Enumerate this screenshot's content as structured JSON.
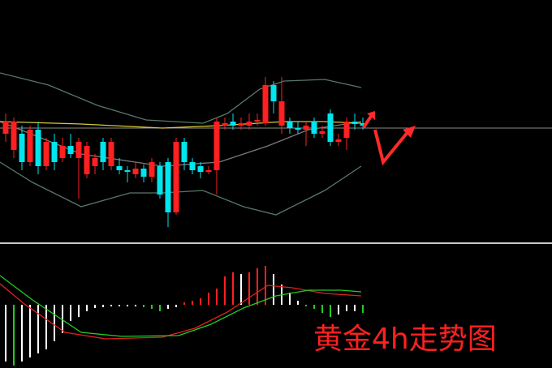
{
  "chart_data": [
    {
      "type": "candlestick",
      "x": [
        0,
        1,
        2,
        3,
        4,
        5,
        6,
        7,
        8,
        9,
        10,
        11,
        12,
        13,
        14,
        15,
        16,
        17,
        18,
        19,
        20,
        21,
        22,
        23,
        24,
        25,
        26,
        27,
        28,
        29,
        30,
        31,
        32,
        33,
        34,
        35,
        36,
        37,
        38,
        39,
        40,
        41,
        42,
        43,
        44
      ],
      "open": [
        135,
        115,
        135,
        100,
        140,
        95,
        125,
        105,
        120,
        105,
        85,
        95,
        125,
        95,
        95,
        90,
        85,
        92,
        82,
        95,
        100,
        38,
        125,
        100,
        95,
        88,
        90,
        145,
        150,
        145,
        145,
        150,
        148,
        195,
        145,
        150,
        142,
        140,
        150,
        135,
        160,
        125,
        130,
        150,
        148
      ],
      "high": [
        160,
        155,
        145,
        145,
        150,
        130,
        135,
        130,
        135,
        130,
        125,
        110,
        130,
        130,
        105,
        95,
        100,
        97,
        105,
        100,
        105,
        130,
        130,
        105,
        100,
        95,
        155,
        155,
        160,
        155,
        160,
        160,
        205,
        200,
        205,
        155,
        150,
        150,
        155,
        145,
        165,
        135,
        155,
        160,
        155
      ],
      "low": [
        125,
        105,
        90,
        95,
        85,
        90,
        90,
        100,
        105,
        55,
        80,
        85,
        90,
        90,
        85,
        75,
        80,
        75,
        75,
        55,
        20,
        35,
        90,
        85,
        80,
        85,
        60,
        140,
        140,
        140,
        140,
        145,
        145,
        160,
        135,
        135,
        135,
        120,
        130,
        130,
        120,
        120,
        115,
        140,
        140
      ],
      "close": [
        150,
        150,
        100,
        140,
        95,
        125,
        100,
        120,
        110,
        125,
        120,
        105,
        100,
        125,
        90,
        88,
        92,
        82,
        100,
        60,
        38,
        125,
        100,
        90,
        88,
        90,
        150,
        148,
        145,
        148,
        150,
        152,
        195,
        175,
        175,
        142,
        140,
        145,
        135,
        138,
        125,
        128,
        150,
        147,
        145
      ],
      "up_color": "#ff2020",
      "down_color": "#00e5ee",
      "xlim": [
        -0.7,
        67.3
      ],
      "ylim": [
        0,
        300
      ],
      "price_line": 142,
      "lines": [
        {
          "color": "#56786a",
          "x": [
            -0.7,
            5.3,
            11.3,
            17.3,
            24.3,
            27.3,
            31.3,
            34.3,
            39.3,
            43.8
          ],
          "values": [
            210,
            195,
            170,
            152,
            148,
            160,
            190,
            200,
            202,
            192
          ]
        },
        {
          "color": "#56786a",
          "x": [
            -0.7,
            3.3,
            9.3,
            15.3,
            19.3,
            24.3,
            29.3,
            33.3,
            39.3,
            43.8
          ],
          "values": [
            100,
            75,
            45,
            62,
            62,
            65,
            45,
            35,
            65,
            95
          ]
        },
        {
          "color": "#7a7a7a",
          "x": [
            -0.7,
            9.3,
            19.3,
            26.3,
            32.3,
            37.3,
            43.8
          ],
          "values": [
            150,
            110,
            95,
            100,
            120,
            140,
            150
          ]
        },
        {
          "color": "#d8c93a",
          "x": [
            -0.7,
            9.3,
            19.3,
            26.3,
            34.3,
            39.3,
            43.8
          ],
          "values": [
            150,
            147,
            142,
            145,
            150,
            150,
            148
          ]
        }
      ]
    },
    {
      "type": "macd",
      "title": "黄金4h走势图",
      "x": [
        0,
        1,
        2,
        3,
        4,
        5,
        6,
        7,
        8,
        9,
        10,
        11,
        12,
        13,
        14,
        15,
        16,
        17,
        18,
        19,
        20,
        21,
        22,
        23,
        24,
        25,
        26,
        27,
        28,
        29,
        30,
        31,
        32,
        33,
        34,
        35,
        36,
        37,
        38,
        39,
        40,
        41,
        42,
        43,
        44
      ],
      "values": [
        -70,
        -75,
        -70,
        -65,
        -60,
        -55,
        -45,
        -35,
        -20,
        -15,
        -8,
        -4,
        -3,
        -2,
        -2,
        -2,
        -2,
        -3,
        -5,
        -8,
        -5,
        -3,
        3,
        5,
        8,
        15,
        20,
        35,
        40,
        38,
        40,
        45,
        48,
        38,
        25,
        15,
        5,
        -2,
        -5,
        -10,
        -15,
        -12,
        -8,
        -8,
        -10
      ],
      "rising_color": "#ff2020",
      "falling_color": "#22cc22",
      "fading_color": "#ffffff",
      "xlim": [
        -0.7,
        67.3
      ],
      "ylim": [
        -78,
        73
      ],
      "lines": [
        {
          "color": "#e02020",
          "x": [
            -0.7,
            2.3,
            7.3,
            12.3,
            19.3,
            23.3,
            27.3,
            32.3,
            35.3,
            39.3,
            43.8
          ],
          "values": [
            26,
            1,
            -34,
            -42,
            -40,
            -29,
            -9,
            24,
            21,
            14,
            11
          ]
        },
        {
          "color": "#22cc22",
          "x": [
            -0.7,
            3.3,
            9.3,
            14.3,
            21.3,
            25.3,
            29.3,
            33.3,
            37.3,
            41.3,
            43.8
          ],
          "values": [
            36,
            6,
            -34,
            -39,
            -38,
            -24,
            -4,
            11,
            18,
            18,
            16
          ]
        }
      ]
    }
  ]
}
